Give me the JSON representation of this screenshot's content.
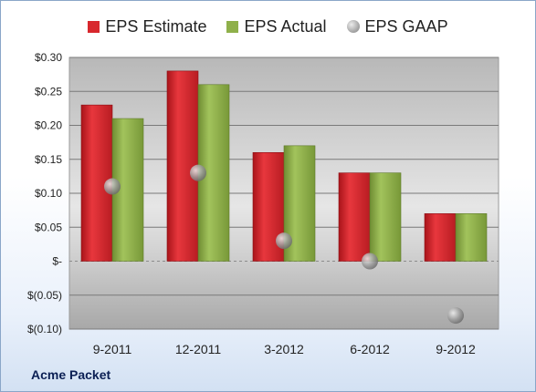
{
  "chart_data": {
    "type": "bar",
    "categories": [
      "9-2011",
      "12-2011",
      "3-2012",
      "6-2012",
      "9-2012"
    ],
    "series": [
      {
        "name": "EPS Estimate",
        "kind": "bar",
        "color": "#d8272d",
        "values": [
          0.23,
          0.28,
          0.16,
          0.13,
          0.07
        ]
      },
      {
        "name": "EPS Actual",
        "kind": "bar",
        "color": "#8fb04a",
        "values": [
          0.21,
          0.26,
          0.17,
          0.13,
          0.07
        ]
      },
      {
        "name": "EPS GAAP",
        "kind": "marker",
        "color": "#9a9a9a",
        "values": [
          0.11,
          0.13,
          0.03,
          0.0,
          -0.08
        ]
      }
    ],
    "ylim": [
      -0.1,
      0.3
    ],
    "y_ticks": [
      0.3,
      0.25,
      0.2,
      0.15,
      0.1,
      0.05,
      0.0,
      -0.05,
      -0.1
    ],
    "y_tick_labels": [
      "$0.30",
      "$0.25",
      "$0.20",
      "$0.15",
      "$0.10",
      "$0.05",
      "$-",
      "$(0.05)",
      "$(0.10)"
    ],
    "grid": true,
    "legend_position": "top-center"
  },
  "footer": {
    "company": "Acme Packet"
  }
}
